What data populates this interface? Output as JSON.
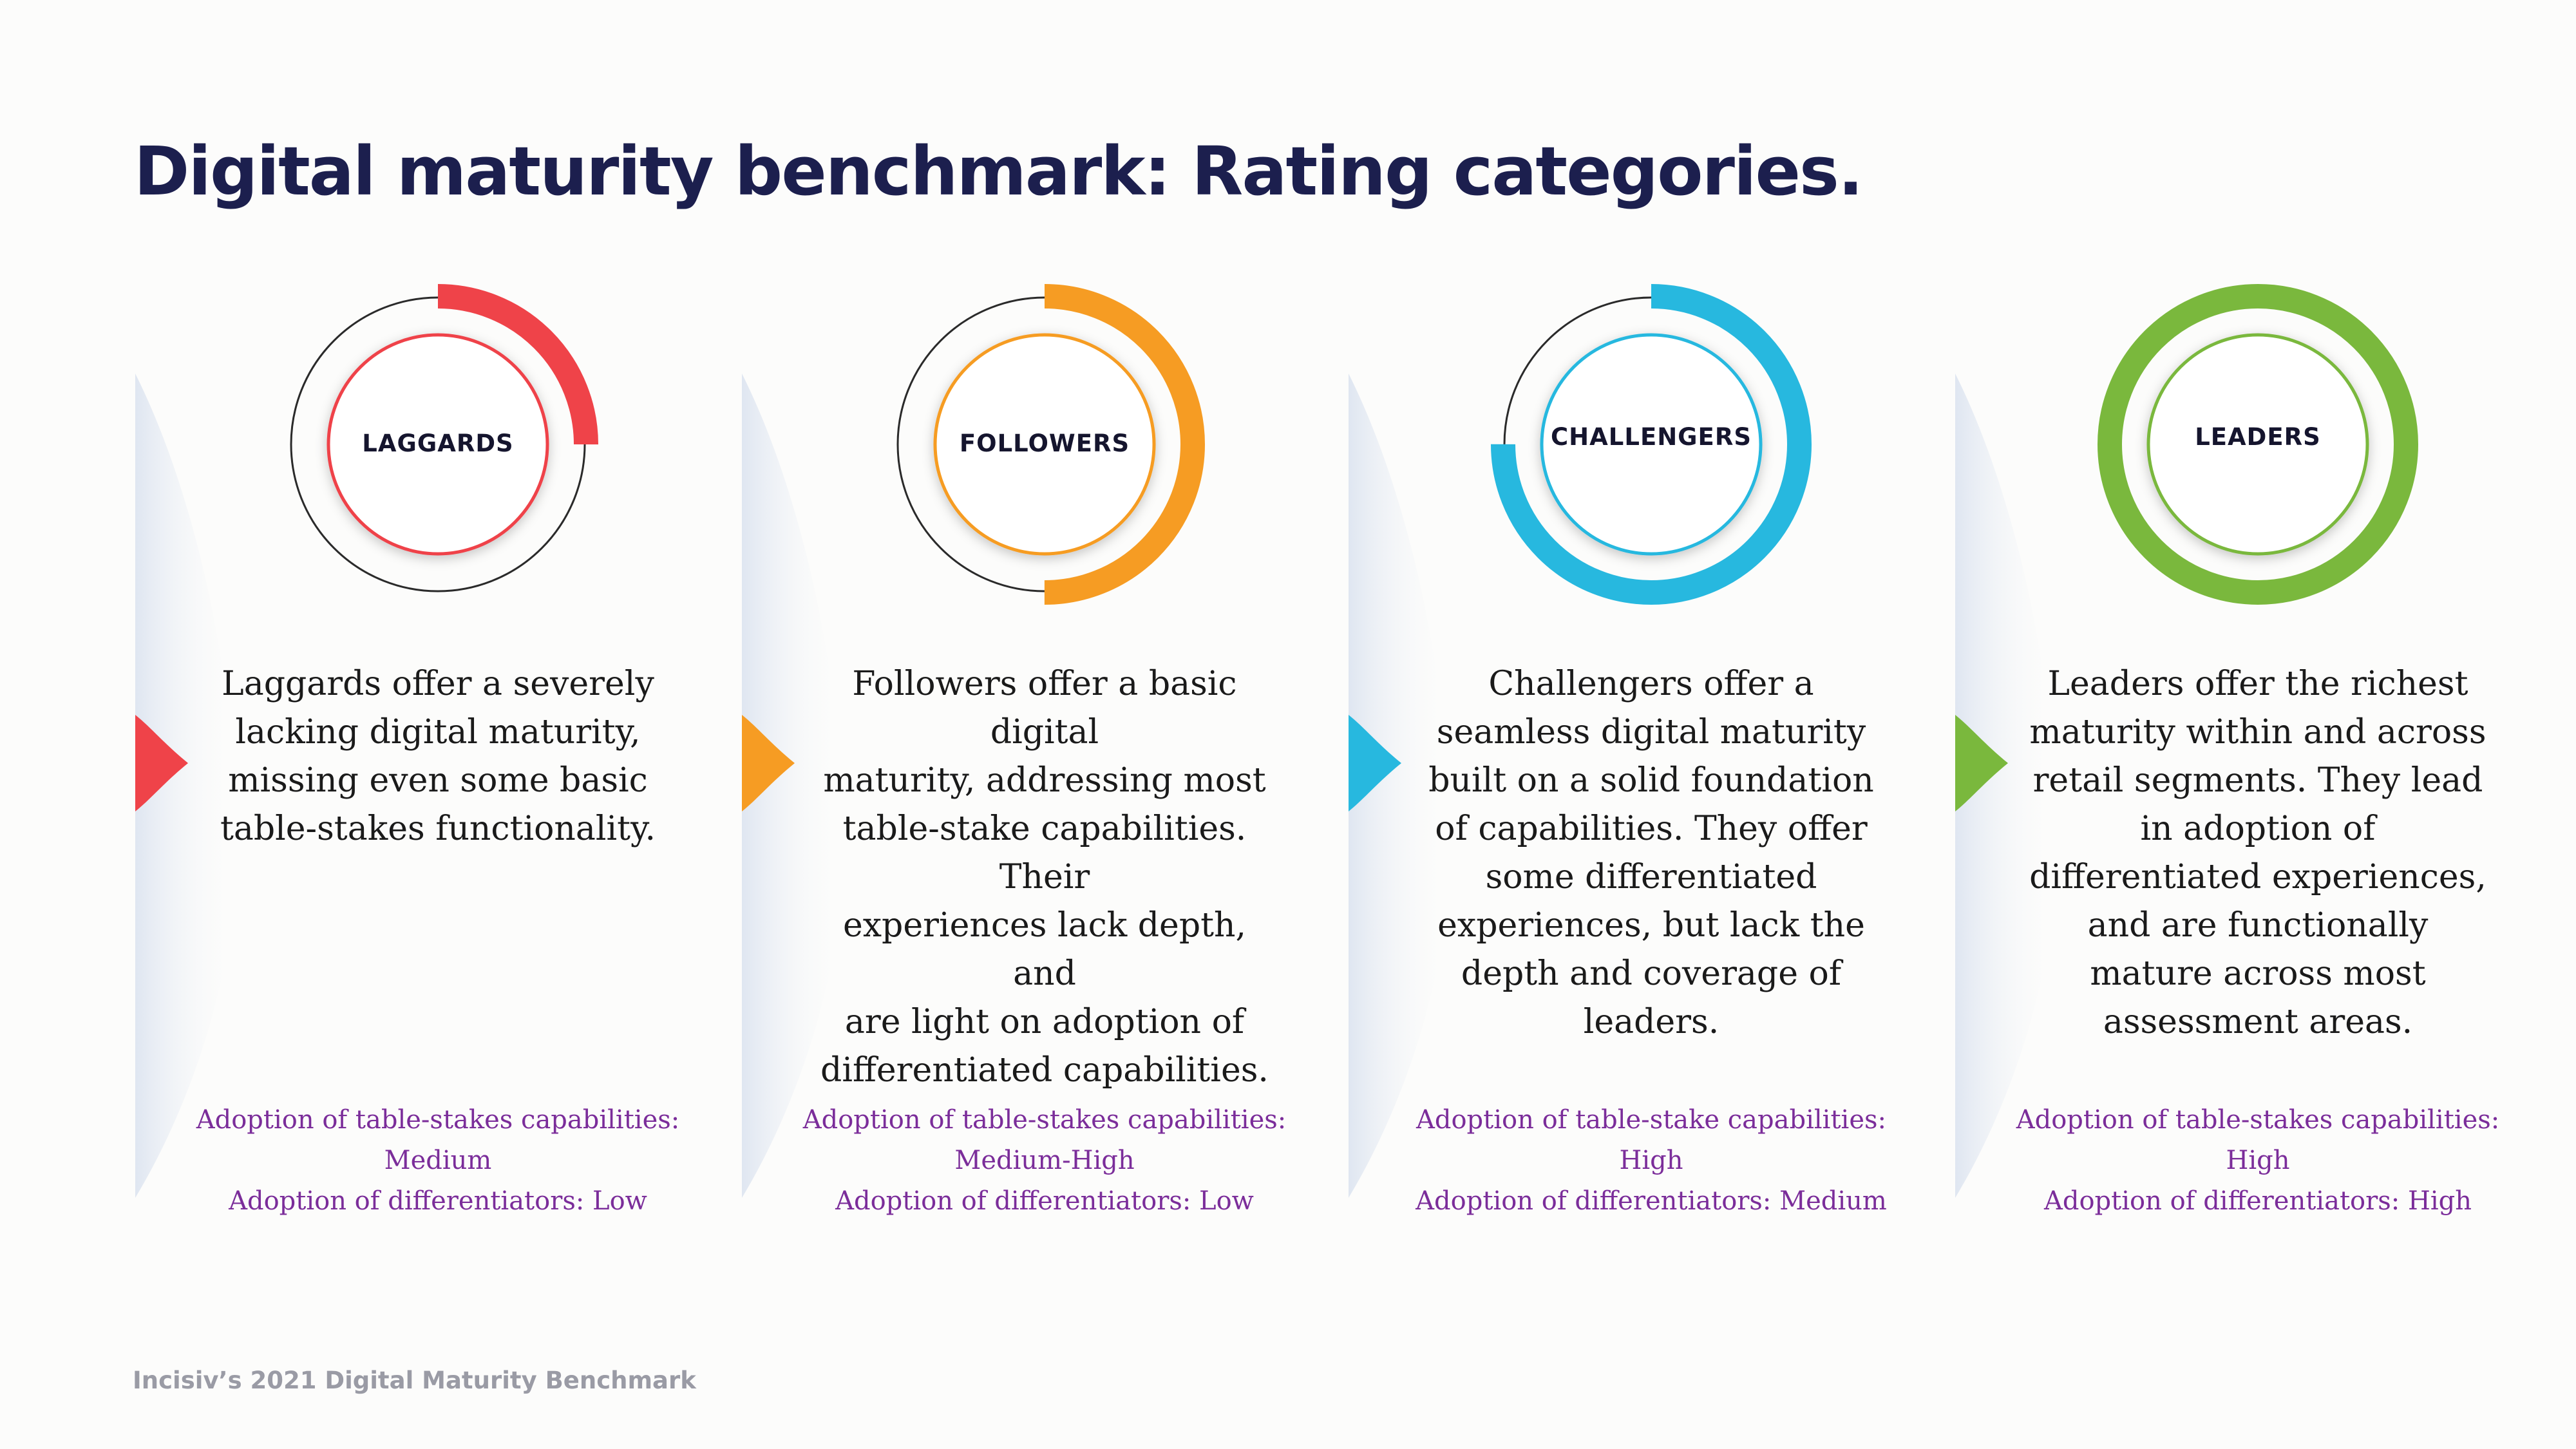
{
  "title": "Digital maturity benchmark: Rating categories.",
  "footer": "Incisiv’s 2021 Digital Maturity Benchmark",
  "categories": [
    {
      "label": "LAGGARDS",
      "color": "#ef4349",
      "arc_fraction": 0.25,
      "description": [
        "Laggards offer a severely",
        "lacking digital maturity,",
        "missing even some basic",
        "table-stakes functionality."
      ],
      "adoption": [
        "Adoption of table-stakes capabilities:",
        "Medium",
        "Adoption of differentiators: Low"
      ]
    },
    {
      "label": "FOLLOWERS",
      "color": "#f69c23",
      "arc_fraction": 0.5,
      "description": [
        "Followers offer a basic digital",
        "maturity, addressing most",
        "table-stake capabilities. Their",
        "experiences lack depth, and",
        "are light on adoption of",
        "differentiated capabilities."
      ],
      "adoption": [
        "Adoption of table-stakes capabilities:",
        "Medium-High",
        "Adoption of differentiators: Low"
      ]
    },
    {
      "label": "CHALLENGERS",
      "color": "#27b8df",
      "arc_fraction": 0.75,
      "description": [
        "Challengers offer a",
        "seamless digital maturity",
        "built on a solid foundation",
        "of capabilities. They offer",
        "some differentiated",
        "experiences, but lack the",
        "depth and coverage of",
        "leaders."
      ],
      "adoption": [
        "Adoption of table-stake capabilities:",
        "High",
        "Adoption of differentiators: Medium"
      ]
    },
    {
      "label": "LEADERS",
      "color": "#7ab83d",
      "arc_fraction": 1.0,
      "description": [
        "Leaders offer the richest",
        "maturity within and across",
        "retail segments. They lead",
        "in adoption of",
        "differentiated experiences,",
        "and are functionally",
        "mature across most",
        "assessment areas."
      ],
      "adoption": [
        "Adoption of table-stakes capabilities:",
        "High",
        "Adoption of differentiators: High"
      ]
    }
  ]
}
